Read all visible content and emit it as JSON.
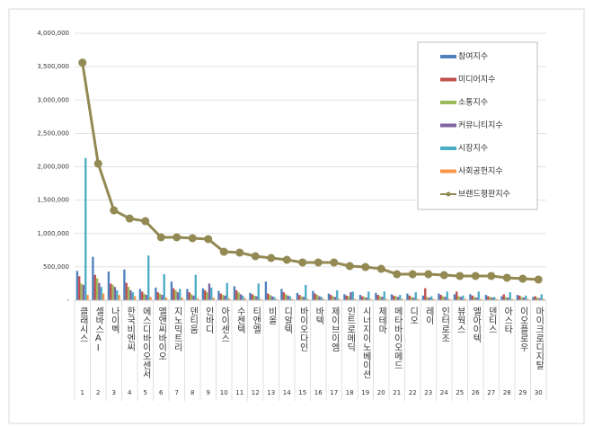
{
  "chart_data": {
    "type": "bar_line",
    "categories": [
      "클래시스",
      "셀바스AI",
      "나이벡",
      "한국비엔씨",
      "에스디바이오센서",
      "엘앤씨바이오",
      "지노믹트리",
      "덴티움",
      "인바디",
      "아이센스",
      "수젠텍",
      "티앤엘",
      "비올",
      "디알텍",
      "바이오다인",
      "바텍",
      "제이브이엠",
      "인트로메딕",
      "시너지이노베이션",
      "제테마",
      "메타바이오메드",
      "디오",
      "레이",
      "인터로조",
      "뷰웍스",
      "엘아이텍",
      "덴티스",
      "아스타",
      "이오플로우",
      "마이크로디지탈"
    ],
    "ranks": [
      1,
      2,
      3,
      4,
      5,
      6,
      7,
      8,
      9,
      10,
      11,
      12,
      13,
      14,
      15,
      16,
      17,
      18,
      19,
      20,
      21,
      22,
      23,
      24,
      25,
      26,
      27,
      28,
      29,
      30
    ],
    "series": [
      {
        "name": "참여지수",
        "color": "#4f81bd",
        "values": [
          440000,
          650000,
          430000,
          460000,
          170000,
          190000,
          280000,
          170000,
          180000,
          140000,
          210000,
          110000,
          280000,
          170000,
          110000,
          140000,
          100000,
          90000,
          80000,
          110000,
          90000,
          100000,
          70000,
          100000,
          90000,
          90000,
          80000,
          60000,
          80000,
          50000
        ]
      },
      {
        "name": "미디어지수",
        "color": "#c0504d",
        "values": [
          360000,
          380000,
          250000,
          260000,
          130000,
          120000,
          180000,
          120000,
          150000,
          100000,
          150000,
          90000,
          100000,
          120000,
          80000,
          100000,
          80000,
          70000,
          60000,
          80000,
          70000,
          70000,
          180000,
          80000,
          130000,
          70000,
          60000,
          90000,
          70000,
          60000
        ]
      },
      {
        "name": "소통지수",
        "color": "#9bbb59",
        "values": [
          250000,
          330000,
          230000,
          200000,
          100000,
          100000,
          150000,
          90000,
          120000,
          80000,
          120000,
          70000,
          80000,
          90000,
          60000,
          80000,
          60000,
          60000,
          50000,
          60000,
          60000,
          50000,
          50000,
          60000,
          60000,
          50000,
          50000,
          50000,
          50000,
          40000
        ]
      },
      {
        "name": "커뮤니티지수",
        "color": "#8064a2",
        "values": [
          230000,
          260000,
          200000,
          150000,
          80000,
          80000,
          120000,
          70000,
          250000,
          70000,
          90000,
          60000,
          60000,
          70000,
          50000,
          60000,
          50000,
          120000,
          40000,
          50000,
          50000,
          40000,
          40000,
          50000,
          50000,
          40000,
          40000,
          40000,
          40000,
          30000
        ]
      },
      {
        "name": "시장지수",
        "color": "#4bacc6",
        "values": [
          2130000,
          200000,
          150000,
          120000,
          670000,
          390000,
          170000,
          380000,
          190000,
          260000,
          70000,
          250000,
          50000,
          60000,
          230000,
          50000,
          150000,
          130000,
          130000,
          130000,
          80000,
          120000,
          60000,
          130000,
          70000,
          130000,
          50000,
          120000,
          70000,
          90000
        ]
      },
      {
        "name": "사회공헌지수",
        "color": "#f79646",
        "values": [
          80000,
          100000,
          80000,
          60000,
          50000,
          40000,
          40000,
          30000,
          40000,
          30000,
          30000,
          20000,
          20000,
          20000,
          20000,
          20000,
          20000,
          20000,
          20000,
          20000,
          20000,
          20000,
          20000,
          20000,
          20000,
          20000,
          20000,
          20000,
          20000,
          20000
        ]
      },
      {
        "name": "브랜드평판지수",
        "color": "#938953",
        "type": "line",
        "values": [
          3560000,
          2047000,
          1347000,
          1225000,
          1185000,
          943000,
          943000,
          930000,
          916000,
          727000,
          714000,
          660000,
          633000,
          606000,
          566000,
          566000,
          566000,
          512000,
          498000,
          471000,
          390000,
          390000,
          390000,
          377000,
          364000,
          364000,
          364000,
          337000,
          323000,
          310000
        ]
      }
    ],
    "ylim": [
      0,
      4000000
    ],
    "yticks": [
      {
        "value": 0,
        "label": "-"
      },
      {
        "value": 500000,
        "label": "500,000"
      },
      {
        "value": 1000000,
        "label": "1,000,000"
      },
      {
        "value": 1500000,
        "label": "1,500,000"
      },
      {
        "value": 2000000,
        "label": "2,000,000"
      },
      {
        "value": 2500000,
        "label": "2,500,000"
      },
      {
        "value": 3000000,
        "label": "3,000,000"
      },
      {
        "value": 3500000,
        "label": "3,500,000"
      },
      {
        "value": 4000000,
        "label": "4,000,000"
      }
    ],
    "grid": true,
    "legend": "upper right"
  }
}
